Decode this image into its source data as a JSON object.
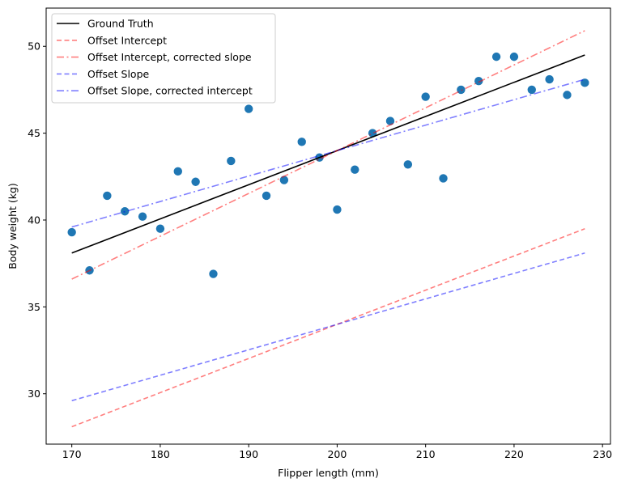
{
  "chart_data": {
    "type": "scatter",
    "xlabel": "Flipper length (mm)",
    "ylabel": "Body weight (kg)",
    "xlim": [
      167.1,
      230.9
    ],
    "ylim": [
      27.1,
      52.2
    ],
    "x_ticks": [
      170,
      180,
      190,
      200,
      210,
      220,
      230
    ],
    "y_ticks": [
      30,
      35,
      40,
      45,
      50
    ],
    "grid": false,
    "legend_position": "top-left",
    "points": {
      "color": "#1f77b4",
      "x": [
        170,
        172,
        174,
        176,
        178,
        180,
        182,
        184,
        186,
        188,
        190,
        192,
        194,
        196,
        198,
        200,
        202,
        204,
        206,
        208,
        210,
        212,
        214,
        216,
        218,
        220,
        222,
        224,
        226,
        228
      ],
      "y": [
        39.3,
        37.1,
        41.4,
        40.5,
        40.2,
        39.5,
        42.8,
        42.2,
        36.9,
        43.4,
        46.4,
        41.4,
        42.3,
        44.5,
        43.6,
        40.6,
        42.9,
        45.0,
        45.7,
        43.2,
        47.1,
        42.4,
        47.5,
        48.0,
        49.4,
        49.4,
        47.5,
        48.1,
        47.2,
        47.9
      ]
    },
    "series": [
      {
        "name": "Ground Truth",
        "color": "#000000",
        "style": "solid",
        "opacity": 1,
        "x": [
          170,
          228
        ],
        "y": [
          38.1,
          49.5
        ]
      },
      {
        "name": "Offset Intercept",
        "color": "#ff0000",
        "style": "dashed",
        "opacity": 0.5,
        "x": [
          170,
          228
        ],
        "y": [
          28.1,
          39.5
        ]
      },
      {
        "name": "Offset Intercept, corrected slope",
        "color": "#ff0000",
        "style": "dashdot",
        "opacity": 0.5,
        "x": [
          170,
          228
        ],
        "y": [
          36.6,
          50.9
        ]
      },
      {
        "name": "Offset Slope",
        "color": "#0000ff",
        "style": "dashed",
        "opacity": 0.5,
        "x": [
          170,
          228
        ],
        "y": [
          29.6,
          38.1
        ]
      },
      {
        "name": "Offset Slope, corrected intercept",
        "color": "#0000ff",
        "style": "dashdot",
        "opacity": 0.5,
        "x": [
          170,
          228
        ],
        "y": [
          39.6,
          48.1
        ]
      }
    ]
  }
}
